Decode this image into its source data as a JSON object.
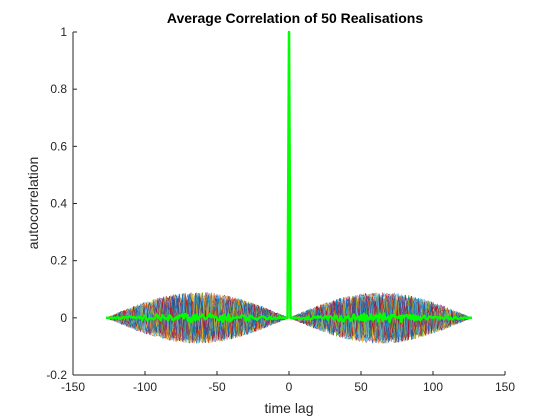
{
  "chart_data": {
    "type": "line",
    "title": "Average Correlation of 50 Realisations",
    "xlabel": "time lag",
    "ylabel": "autocorrelation",
    "xlim": [
      -150,
      150
    ],
    "ylim": [
      -0.2,
      1
    ],
    "x_ticks": [
      -150,
      -100,
      -50,
      0,
      50,
      100,
      150
    ],
    "y_ticks": [
      -0.2,
      0,
      0.2,
      0.4,
      0.6,
      0.8,
      1
    ],
    "lag_range": [
      -127,
      127
    ],
    "realisations": {
      "count": 50,
      "peak_at_zero": 1,
      "noise_amplitude_max": 0.09,
      "colors": [
        "#0072BD",
        "#D95319",
        "#EDB120",
        "#7E2F8E",
        "#77AC30",
        "#4DBEEE",
        "#A2142F"
      ]
    },
    "average_series": {
      "color": "#00FF00",
      "peak_at_zero": 1,
      "noise_amplitude": 0.015
    },
    "grid": false,
    "legend": "none"
  }
}
